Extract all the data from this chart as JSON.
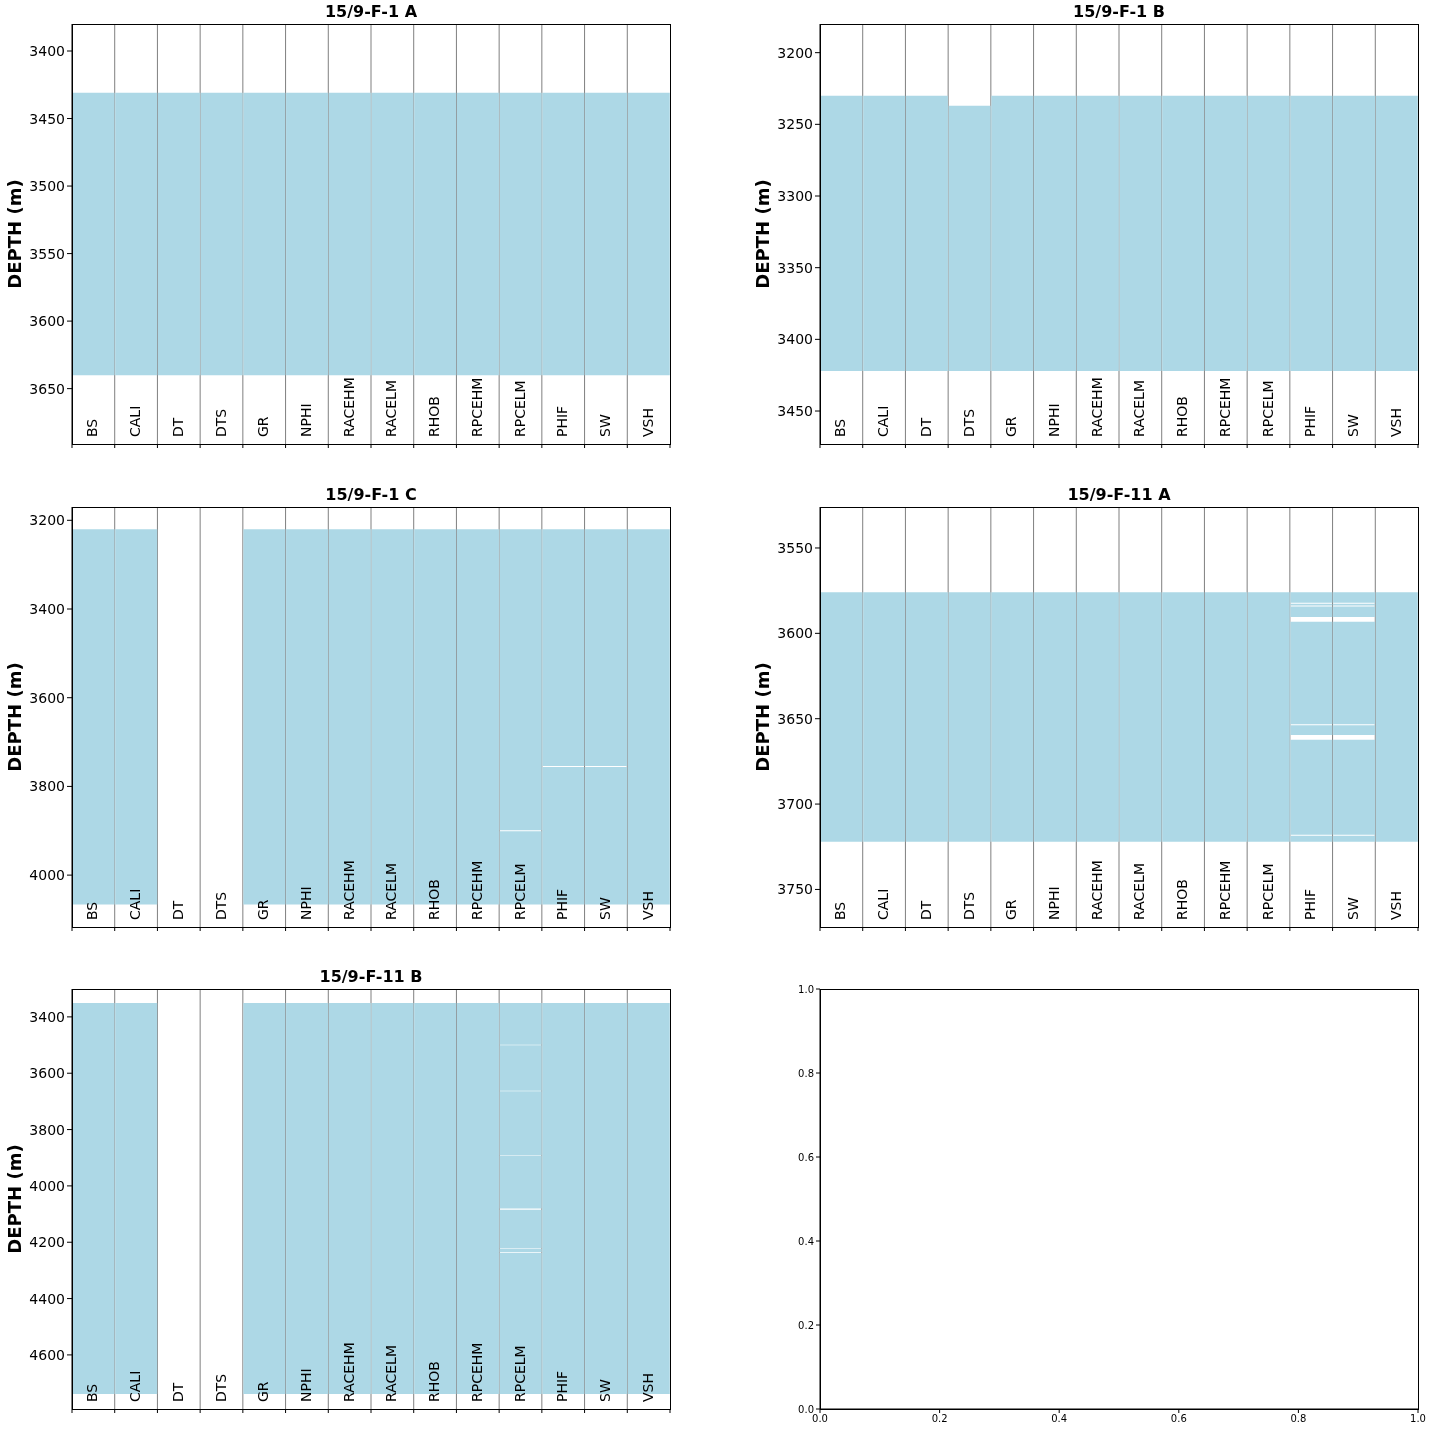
{
  "chart_data": [
    {
      "type": "bar",
      "title": "15/9-F-1 A",
      "ylabel": "DEPTH (m)",
      "categories": [
        "BS",
        "CALI",
        "DT",
        "DTS",
        "GR",
        "NPHI",
        "RACEHM",
        "RACELM",
        "RHOB",
        "RPCEHM",
        "RPCELM",
        "PHIF",
        "SW",
        "VSH"
      ],
      "ylim": [
        3691,
        3380
      ],
      "yticks": [
        3400,
        3450,
        3500,
        3550,
        3600,
        3650
      ],
      "grid": "x",
      "series": [
        {
          "color": "#add8e6",
          "base": [
            3431,
            3431,
            3431,
            3431,
            3431,
            3431,
            3431,
            3431,
            3431,
            3431,
            3431,
            3431,
            3431,
            3431
          ],
          "values": [
            209,
            209,
            209,
            209,
            209,
            209,
            209,
            209,
            209,
            209,
            209,
            209,
            209,
            209
          ]
        }
      ]
    },
    {
      "type": "bar",
      "title": "15/9-F-1 B",
      "ylabel": "DEPTH (m)",
      "categories": [
        "BS",
        "CALI",
        "DT",
        "DTS",
        "GR",
        "NPHI",
        "RACEHM",
        "RACELM",
        "RHOB",
        "RPCEHM",
        "RPCELM",
        "PHIF",
        "SW",
        "VSH"
      ],
      "ylim": [
        3473,
        3180
      ],
      "yticks": [
        3200,
        3250,
        3300,
        3350,
        3400,
        3450
      ],
      "grid": "x",
      "series": [
        {
          "color": "#add8e6",
          "base": [
            3230,
            3230,
            3230,
            3237,
            3230,
            3230,
            3230,
            3230,
            3230,
            3230,
            3230,
            3230,
            3230,
            3230
          ],
          "values": [
            192,
            192,
            192,
            185,
            192,
            192,
            192,
            192,
            192,
            192,
            192,
            192,
            192,
            192
          ]
        }
      ]
    },
    {
      "type": "bar",
      "title": "15/9-F-1 C",
      "ylabel": "DEPTH (m)",
      "categories": [
        "BS",
        "CALI",
        "DT",
        "DTS",
        "GR",
        "NPHI",
        "RACEHM",
        "RACELM",
        "RHOB",
        "RPCEHM",
        "RPCELM",
        "PHIF",
        "SW",
        "VSH"
      ],
      "ylim": [
        4117,
        3170
      ],
      "yticks": [
        3200,
        3400,
        3600,
        3800,
        4000
      ],
      "grid": "x",
      "series": [
        {
          "color": "#add8e6",
          "base": [
            3220,
            3220,
            null,
            null,
            3220,
            3220,
            3220,
            3220,
            3220,
            3220,
            3220,
            3220,
            3220,
            3220
          ],
          "values": [
            846,
            846,
            null,
            null,
            846,
            846,
            846,
            846,
            846,
            846,
            679,
            534,
            534,
            846
          ]
        },
        {
          "color": "#add8e6",
          "base": [
            null,
            null,
            null,
            null,
            null,
            null,
            null,
            null,
            null,
            null,
            3901,
            3756,
            3756,
            null
          ],
          "values": [
            null,
            null,
            null,
            null,
            null,
            null,
            null,
            null,
            null,
            null,
            165,
            310,
            310,
            null
          ]
        }
      ]
    },
    {
      "type": "bar",
      "title": "15/9-F-11 A",
      "ylabel": "DEPTH (m)",
      "categories": [
        "BS",
        "CALI",
        "DT",
        "DTS",
        "GR",
        "NPHI",
        "RACEHM",
        "RACELM",
        "RHOB",
        "RPCEHM",
        "RPCELM",
        "PHIF",
        "SW",
        "VSH"
      ],
      "ylim": [
        3772,
        3526
      ],
      "yticks": [
        3550,
        3600,
        3650,
        3700,
        3750
      ],
      "grid": "x",
      "series": [
        {
          "color": "#add8e6",
          "base": [
            3576,
            3576,
            3576,
            3576,
            3576,
            3576,
            3576,
            3576,
            3576,
            3576,
            3576,
            3576,
            3576,
            3576
          ],
          "values": [
            146,
            146,
            146,
            146,
            146,
            146,
            146,
            146,
            146,
            146,
            146,
            6.1,
            6.1,
            146
          ]
        },
        {
          "color": "#add8e6",
          "base": [
            null,
            null,
            null,
            null,
            null,
            null,
            null,
            null,
            null,
            null,
            null,
            3582.7,
            3582.7,
            null
          ],
          "values": [
            null,
            null,
            null,
            null,
            null,
            null,
            null,
            null,
            null,
            null,
            null,
            1.0,
            1.0,
            null
          ]
        },
        {
          "color": "#add8e6",
          "base": [
            null,
            null,
            null,
            null,
            null,
            null,
            null,
            null,
            null,
            null,
            null,
            3584.3,
            3584.3,
            null
          ],
          "values": [
            null,
            null,
            null,
            null,
            null,
            null,
            null,
            null,
            null,
            null,
            null,
            6.1,
            6.1,
            null
          ]
        },
        {
          "color": "#add8e6",
          "base": [
            null,
            null,
            null,
            null,
            null,
            null,
            null,
            null,
            null,
            null,
            null,
            3593.2,
            3593.2,
            null
          ],
          "values": [
            null,
            null,
            null,
            null,
            null,
            null,
            null,
            null,
            null,
            null,
            null,
            60.1,
            60.1,
            null
          ]
        },
        {
          "color": "#add8e6",
          "base": [
            null,
            null,
            null,
            null,
            null,
            null,
            null,
            null,
            null,
            null,
            null,
            3653.9,
            3653.9,
            null
          ],
          "values": [
            null,
            null,
            null,
            null,
            null,
            null,
            null,
            null,
            null,
            null,
            null,
            5.6,
            5.6,
            null
          ]
        },
        {
          "color": "#add8e6",
          "base": [
            null,
            null,
            null,
            null,
            null,
            null,
            null,
            null,
            null,
            null,
            null,
            3662.3,
            3662.3,
            null
          ],
          "values": [
            null,
            null,
            null,
            null,
            null,
            null,
            null,
            null,
            null,
            null,
            null,
            55.7,
            55.7,
            null
          ]
        },
        {
          "color": "#add8e6",
          "base": [
            null,
            null,
            null,
            null,
            null,
            null,
            null,
            null,
            null,
            null,
            null,
            3718.6,
            3718.6,
            null
          ],
          "values": [
            null,
            null,
            null,
            null,
            null,
            null,
            null,
            null,
            null,
            null,
            null,
            3.4,
            3.4,
            null
          ]
        }
      ]
    },
    {
      "type": "bar",
      "title": "15/9-F-11 B",
      "ylabel": "DEPTH (m)",
      "categories": [
        "BS",
        "CALI",
        "DT",
        "DTS",
        "GR",
        "NPHI",
        "RACEHM",
        "RACELM",
        "RHOB",
        "RPCEHM",
        "RPCELM",
        "PHIF",
        "SW",
        "VSH"
      ],
      "ylim": [
        4792,
        3301
      ],
      "yticks": [
        3400,
        3600,
        3800,
        4000,
        4200,
        4400,
        4600
      ],
      "grid": "x",
      "series": [
        {
          "color": "#add8e6",
          "base": [
            3351,
            3351,
            null,
            null,
            3351,
            3351,
            3351,
            3351,
            3351,
            3351,
            3351,
            3351,
            3351,
            3351
          ],
          "values": [
            1388,
            1388,
            null,
            null,
            1388,
            1388,
            1388,
            1388,
            1388,
            1388,
            148,
            1388,
            1388,
            1388
          ]
        },
        {
          "color": "#add8e6",
          "base": [
            null,
            null,
            null,
            null,
            null,
            null,
            null,
            null,
            null,
            null,
            3501,
            null,
            null,
            null
          ],
          "values": [
            null,
            null,
            null,
            null,
            null,
            null,
            null,
            null,
            null,
            null,
            161,
            null,
            null,
            null
          ]
        },
        {
          "color": "#add8e6",
          "base": [
            null,
            null,
            null,
            null,
            null,
            null,
            null,
            null,
            null,
            null,
            3664,
            null,
            null,
            null
          ],
          "values": [
            null,
            null,
            null,
            null,
            null,
            null,
            null,
            null,
            null,
            null,
            226,
            null,
            null,
            null
          ]
        },
        {
          "color": "#add8e6",
          "base": [
            null,
            null,
            null,
            null,
            null,
            null,
            null,
            null,
            null,
            null,
            3892,
            null,
            null,
            null
          ],
          "values": [
            null,
            null,
            null,
            null,
            null,
            null,
            null,
            null,
            null,
            null,
            188,
            null,
            null,
            null
          ]
        },
        {
          "color": "#add8e6",
          "base": [
            null,
            null,
            null,
            null,
            null,
            null,
            null,
            null,
            null,
            null,
            4085,
            null,
            null,
            null
          ],
          "values": [
            null,
            null,
            null,
            null,
            null,
            null,
            null,
            null,
            null,
            null,
            136,
            null,
            null,
            null
          ]
        },
        {
          "color": "#add8e6",
          "base": [
            null,
            null,
            null,
            null,
            null,
            null,
            null,
            null,
            null,
            null,
            4223,
            null,
            null,
            null
          ],
          "values": [
            null,
            null,
            null,
            null,
            null,
            null,
            null,
            null,
            null,
            null,
            12,
            null,
            null,
            null
          ]
        },
        {
          "color": "#add8e6",
          "base": [
            null,
            null,
            null,
            null,
            null,
            null,
            null,
            null,
            null,
            null,
            4237,
            null,
            null,
            null
          ],
          "values": [
            null,
            null,
            null,
            null,
            null,
            null,
            null,
            null,
            null,
            null,
            502,
            null,
            null,
            null
          ]
        }
      ]
    },
    {
      "type": "scatter",
      "xlim": [
        0,
        1
      ],
      "ylim": [
        0,
        1
      ],
      "xticks": [
        {
          "value": 0,
          "label": "0.0"
        },
        0.2,
        0.4,
        0.6,
        0.8,
        {
          "value": 1,
          "label": "1.0"
        }
      ],
      "yticks": [
        {
          "value": 0,
          "label": "0.0"
        },
        0.2,
        0.4,
        0.6,
        0.8,
        {
          "value": 1,
          "label": "1.0"
        }
      ]
    }
  ]
}
